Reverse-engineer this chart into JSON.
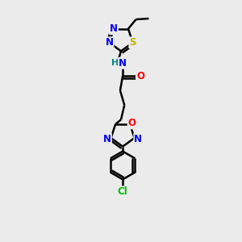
{
  "bg_color": "#ebebeb",
  "atom_colors": {
    "N": "#0000ff",
    "O": "#ff0000",
    "S": "#b8b800",
    "Cl": "#00bb00",
    "C": "#000000",
    "H": "#008888"
  },
  "bond_color": "#000000",
  "bond_width": 1.8,
  "font_size_atoms": 8.5
}
